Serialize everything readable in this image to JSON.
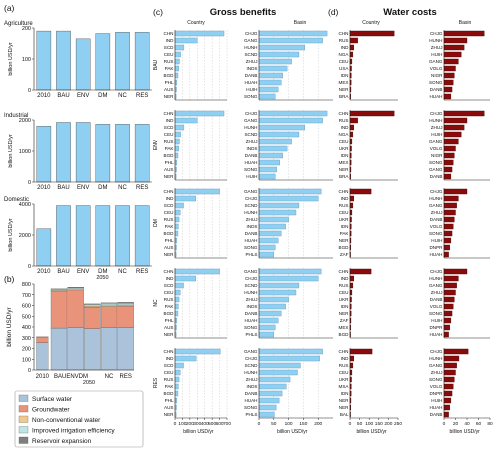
{
  "panel_labels": {
    "a": "(a)",
    "b": "(b)",
    "c": "(c)",
    "d": "(d)"
  },
  "headings": {
    "gross_benefits": "Gross benefits",
    "water_costs": "Water costs",
    "country": "Country",
    "basin": "Basin"
  },
  "colors": {
    "light_blue": "#8fd0f2",
    "dark_red": "#8b0b0b",
    "surface": "#aac3da",
    "groundwater": "#e8937a",
    "nonconv": "#f3c98b",
    "efficiency": "#bce7e3",
    "reservoir": "#7f7f7f",
    "grid": "#bdbdbd",
    "axis": "#222222"
  },
  "chart_data": [
    {
      "id": "a-agriculture",
      "type": "bar",
      "title": "Agriculture",
      "categories": [
        "2010",
        "BAU",
        "ENV",
        "DM",
        "NC",
        "RES"
      ],
      "values": [
        190,
        190,
        165,
        182,
        186,
        186
      ],
      "ylabel": "billion USD/yr",
      "ylim": [
        0,
        200
      ],
      "yticks": [
        0,
        100,
        200
      ]
    },
    {
      "id": "a-industrial",
      "type": "bar",
      "title": "Industrial",
      "categories": [
        "2010",
        "BAU",
        "ENV",
        "DM",
        "NC",
        "RES"
      ],
      "values": [
        1800,
        1920,
        1920,
        1860,
        1860,
        1860
      ],
      "ylabel": "billion USD/yr",
      "ylim": [
        0,
        2000
      ],
      "yticks": [
        0,
        1000,
        2000
      ]
    },
    {
      "id": "a-domestic",
      "type": "bar",
      "title": "Domestic",
      "categories": [
        "2010",
        "BAU",
        "ENV",
        "DM",
        "NC",
        "RES"
      ],
      "values": [
        2400,
        3900,
        3900,
        3900,
        3900,
        3900
      ],
      "ylabel": "billion USD/yr",
      "ylim": [
        0,
        4000
      ],
      "yticks": [
        0,
        2000,
        4000
      ],
      "xlabel": "2050"
    },
    {
      "id": "b-stacked",
      "type": "bar",
      "categories": [
        "2010",
        "BAU",
        "ENV",
        "DM",
        "NC",
        "RES"
      ],
      "series": [
        {
          "name": "Surface water",
          "values": [
            255,
            390,
            395,
            385,
            395,
            395
          ]
        },
        {
          "name": "Groundwater",
          "values": [
            50,
            340,
            350,
            200,
            195,
            200
          ]
        },
        {
          "name": "Non-conventional water",
          "values": [
            5,
            10,
            10,
            10,
            15,
            10
          ]
        },
        {
          "name": "Improved irrigation efficiency",
          "values": [
            0,
            10,
            10,
            15,
            15,
            15
          ]
        },
        {
          "name": "Reservoir expansion",
          "values": [
            0,
            5,
            5,
            5,
            5,
            10
          ]
        }
      ],
      "ylabel": "billion USD/yr",
      "ylim": [
        0,
        800
      ],
      "yticks": [
        0,
        100,
        200,
        300,
        400,
        500,
        600,
        700,
        800
      ],
      "xlabel": "2050"
    },
    {
      "id": "c-country",
      "type": "bar",
      "orientation": "horizontal",
      "xlabel": "billion USD/yr",
      "xlim": [
        0,
        700
      ],
      "xticks": [
        0,
        100,
        200,
        300,
        400,
        500,
        600,
        700
      ],
      "groups": [
        {
          "scenario": "BAU",
          "labels": [
            "CHN",
            "IND",
            "SCD",
            "CEU",
            "RUS",
            "PAK",
            "BGD",
            "PHL",
            "AUS",
            "NER"
          ],
          "values": [
            660,
            300,
            120,
            75,
            60,
            50,
            40,
            25,
            20,
            15
          ]
        },
        {
          "scenario": "ENV",
          "labels": [
            "CHN",
            "IND",
            "SCD",
            "CEU",
            "RUS",
            "PAK",
            "BGD",
            "PHL",
            "AUS",
            "NER"
          ],
          "values": [
            660,
            300,
            120,
            75,
            60,
            50,
            40,
            25,
            20,
            15
          ]
        },
        {
          "scenario": "DM",
          "labels": [
            "CHN",
            "IND",
            "SCD",
            "CEU",
            "RUS",
            "PAK",
            "BGD",
            "PHL",
            "AUS",
            "NER"
          ],
          "values": [
            600,
            280,
            115,
            70,
            55,
            45,
            40,
            25,
            20,
            15
          ]
        },
        {
          "scenario": "NC",
          "labels": [
            "CHN",
            "IND",
            "SCD",
            "CEU",
            "RUS",
            "PAK",
            "BGD",
            "PHL",
            "AUS",
            "NER"
          ],
          "values": [
            600,
            280,
            115,
            70,
            55,
            45,
            40,
            25,
            20,
            15
          ]
        },
        {
          "scenario": "RES",
          "labels": [
            "CHN",
            "IND",
            "SCD",
            "CEU",
            "RUS",
            "PAK",
            "BGD",
            "PHL",
            "AUS",
            "NER"
          ],
          "values": [
            610,
            285,
            115,
            70,
            55,
            45,
            40,
            25,
            20,
            15
          ]
        }
      ]
    },
    {
      "id": "c-basin",
      "type": "bar",
      "orientation": "horizontal",
      "xlabel": "billion USD/yr",
      "xlim": [
        0,
        250
      ],
      "xticks": [
        0,
        50,
        100,
        150,
        200
      ],
      "groups": [
        {
          "scenario": "BAU",
          "labels": [
            "CHJG",
            "GANG",
            "HUNH",
            "SCND",
            "ZHUJ",
            "INDS",
            "DANB",
            "HUAH",
            "HUIH",
            "SONG"
          ],
          "values": [
            230,
            215,
            155,
            135,
            110,
            95,
            80,
            75,
            65,
            55
          ]
        },
        {
          "scenario": "ENV",
          "labels": [
            "CHJG",
            "GANG",
            "HUNH",
            "SCND",
            "ZHUJ",
            "INDS",
            "DANB",
            "HUAH",
            "SONG",
            "HUIH"
          ],
          "values": [
            230,
            215,
            155,
            135,
            110,
            95,
            80,
            70,
            60,
            55
          ]
        },
        {
          "scenario": "DM",
          "labels": [
            "GANG",
            "CHJG",
            "SCND",
            "HUNH",
            "ZHUJ",
            "INDS",
            "DANB",
            "HUAH",
            "SONG",
            "PHLS"
          ],
          "values": [
            210,
            200,
            135,
            125,
            100,
            90,
            75,
            65,
            55,
            50
          ]
        },
        {
          "scenario": "NC",
          "labels": [
            "GANG",
            "CHJG",
            "SCND",
            "HUNH",
            "ZHUJ",
            "INDS",
            "DANB",
            "HUAH",
            "SONG",
            "PHLS"
          ],
          "values": [
            210,
            200,
            135,
            125,
            100,
            90,
            75,
            65,
            55,
            50
          ]
        },
        {
          "scenario": "RES",
          "labels": [
            "GANG",
            "CHJG",
            "SCND",
            "HUNH",
            "ZHUJ",
            "INDS",
            "DANB",
            "HUAH",
            "SONG",
            "PHLS"
          ],
          "values": [
            215,
            205,
            140,
            130,
            105,
            92,
            78,
            68,
            58,
            52
          ]
        }
      ]
    },
    {
      "id": "d-country",
      "type": "bar",
      "orientation": "horizontal",
      "xlabel": "billion USD/yr",
      "xlim": [
        0,
        250
      ],
      "xticks": [
        0,
        50,
        100,
        150,
        200,
        250
      ],
      "groups": [
        {
          "scenario": "BAU",
          "labels": [
            "CHN",
            "RUS",
            "IND",
            "NGA",
            "CEU",
            "USA",
            "IDN",
            "MEX",
            "NER",
            "BRA"
          ],
          "values": [
            230,
            40,
            20,
            15,
            10,
            8,
            7,
            6,
            5,
            4
          ]
        },
        {
          "scenario": "ENV",
          "labels": [
            "CHN",
            "RUS",
            "IND",
            "NGA",
            "CEU",
            "UKR",
            "IDN",
            "MEX",
            "NER",
            "BRA"
          ],
          "values": [
            230,
            40,
            20,
            15,
            10,
            8,
            7,
            6,
            5,
            4
          ]
        },
        {
          "scenario": "DM",
          "labels": [
            "CHN",
            "IND",
            "RUS",
            "CEU",
            "UKR",
            "IDN",
            "PAK",
            "NER",
            "BGD",
            "ZAF"
          ],
          "values": [
            110,
            20,
            15,
            10,
            8,
            7,
            6,
            5,
            4,
            3
          ]
        },
        {
          "scenario": "NC",
          "labels": [
            "CHN",
            "IND",
            "RUS",
            "CEU",
            "UKR",
            "IDN",
            "NER",
            "ZAF",
            "MEX",
            "BGD"
          ],
          "values": [
            110,
            20,
            15,
            10,
            8,
            7,
            6,
            5,
            4,
            3
          ]
        },
        {
          "scenario": "RES",
          "labels": [
            "CHN",
            "IND",
            "RUS",
            "CEU",
            "UKR",
            "MSA",
            "IDN",
            "NER",
            "NER",
            "BAL"
          ],
          "values": [
            115,
            20,
            15,
            10,
            8,
            7,
            6,
            5,
            4,
            3
          ]
        }
      ]
    },
    {
      "id": "d-basin",
      "type": "bar",
      "orientation": "horizontal",
      "xlabel": "billion USD/yr",
      "xlim": [
        0,
        80
      ],
      "xticks": [
        0,
        20,
        40,
        60,
        80
      ],
      "groups": [
        {
          "scenario": "BAU",
          "labels": [
            "CHJG",
            "HUNH",
            "ZHUJ",
            "HUIH",
            "GANG",
            "VOLG",
            "NIGR",
            "SONG",
            "DANB",
            "HUAH"
          ],
          "values": [
            70,
            40,
            35,
            30,
            25,
            20,
            18,
            16,
            14,
            12
          ]
        },
        {
          "scenario": "ENV",
          "labels": [
            "CHJG",
            "HUNH",
            "ZHUJ",
            "HUIH",
            "GANG",
            "VOLG",
            "NIGR",
            "SONG",
            "GANG",
            "DANB"
          ],
          "values": [
            70,
            40,
            35,
            30,
            25,
            20,
            18,
            16,
            14,
            12
          ]
        },
        {
          "scenario": "DM",
          "labels": [
            "CHJG",
            "HUNH",
            "GANG",
            "ZHUJ",
            "DANB",
            "VOLG",
            "SONG",
            "HUIH",
            "DNPR",
            "HUAH"
          ],
          "values": [
            40,
            25,
            22,
            20,
            18,
            16,
            14,
            12,
            10,
            8
          ]
        },
        {
          "scenario": "NC",
          "labels": [
            "CHJG",
            "HUNH",
            "GANG",
            "ZHUJ",
            "DANB",
            "VOLG",
            "SONG",
            "HUIH",
            "DNPR",
            "HUAH"
          ],
          "values": [
            40,
            25,
            22,
            20,
            18,
            16,
            14,
            12,
            10,
            8
          ]
        },
        {
          "scenario": "RES",
          "labels": [
            "CHJG",
            "HUNH",
            "GANG",
            "ZHUJ",
            "SONG",
            "VOLG",
            "DNPR",
            "HUIH",
            "HUAH",
            "DANB"
          ],
          "values": [
            42,
            26,
            22,
            20,
            18,
            16,
            14,
            12,
            10,
            8
          ]
        }
      ]
    }
  ]
}
